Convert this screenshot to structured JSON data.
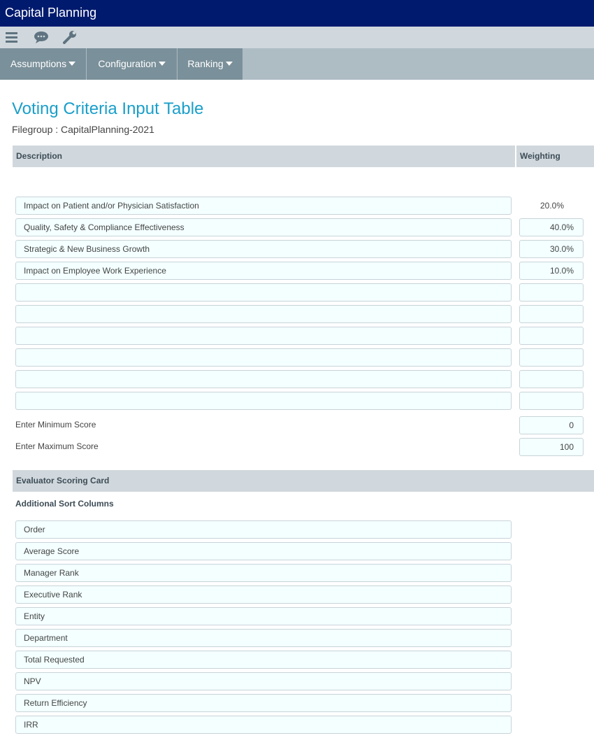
{
  "app": {
    "title": "Capital Planning"
  },
  "toolbar": {
    "icons": [
      "menu-icon",
      "chat-icon",
      "wrench-icon"
    ]
  },
  "nav": {
    "tabs": [
      {
        "label": "Assumptions"
      },
      {
        "label": "Configuration"
      },
      {
        "label": "Ranking"
      }
    ]
  },
  "page": {
    "title": "Voting Criteria Input Table",
    "filegroup": "Filegroup : CapitalPlanning-2021"
  },
  "table": {
    "headers": {
      "description": "Description",
      "weighting": "Weighting"
    },
    "rows": [
      {
        "description": "Impact on Patient and/or Physician Satisfaction",
        "weighting": "20.0%"
      },
      {
        "description": "Quality, Safety & Compliance Effectiveness",
        "weighting": "40.0%"
      },
      {
        "description": "Strategic & New Business Growth",
        "weighting": "30.0%"
      },
      {
        "description": "Impact on Employee Work Experience",
        "weighting": "10.0%"
      },
      {
        "description": "",
        "weighting": ""
      },
      {
        "description": "",
        "weighting": ""
      },
      {
        "description": "",
        "weighting": ""
      },
      {
        "description": "",
        "weighting": ""
      },
      {
        "description": "",
        "weighting": ""
      },
      {
        "description": "",
        "weighting": ""
      }
    ]
  },
  "scores": {
    "min_label": "Enter Minimum Score",
    "min_value": "0",
    "max_label": "Enter Maximum Score",
    "max_value": "100"
  },
  "scoring_card": {
    "header": "Evaluator Scoring Card",
    "subheader": "Additional Sort Columns",
    "columns": [
      "Order",
      "Average Score",
      "Manager Rank",
      "Executive Rank",
      "Entity",
      "Department",
      "Total Requested",
      "NPV",
      "Return Efficiency",
      "IRR"
    ]
  },
  "colors": {
    "appbar": "#001a6e",
    "title": "#1a9fc9",
    "nav_tab": "#7a909a",
    "input_bg": "#f4ffff"
  }
}
